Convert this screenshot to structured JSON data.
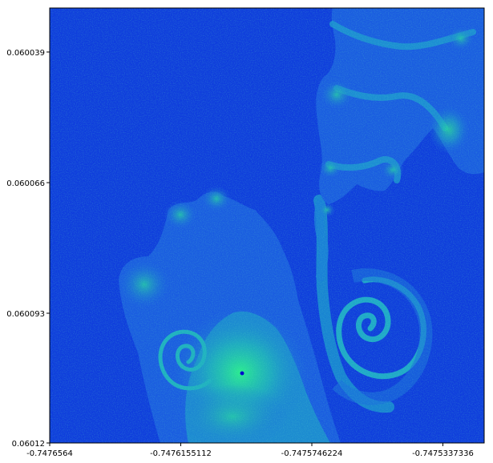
{
  "chart_data": {
    "type": "heatmap",
    "title": "",
    "xlabel": "",
    "ylabel": "",
    "colormap": "winter",
    "x_ticks": [
      "-0.7476564",
      "-0.7476155112",
      "-0.7475746224",
      "-0.7475337336"
    ],
    "y_ticks": [
      "0.060039",
      "0.060066",
      "0.060093",
      "0.06012"
    ],
    "colors": {
      "background": "#0f3ddc",
      "low": "#1a50e6",
      "mid": "#1fa8c8",
      "high": "#1fe88a",
      "point": "#0000cc"
    },
    "regions": [
      {
        "name": "main-spiral",
        "y_center": 0.060102,
        "x_center": -0.74762
      },
      {
        "name": "secondary-spiral",
        "y_center": 0.060097,
        "x_center": -0.7475651
      },
      {
        "name": "upper-branch",
        "y_center": 0.060048,
        "x_center": -0.74755
      },
      {
        "name": "right-bud",
        "y_center": 0.060056,
        "x_center": -0.747535
      }
    ]
  }
}
